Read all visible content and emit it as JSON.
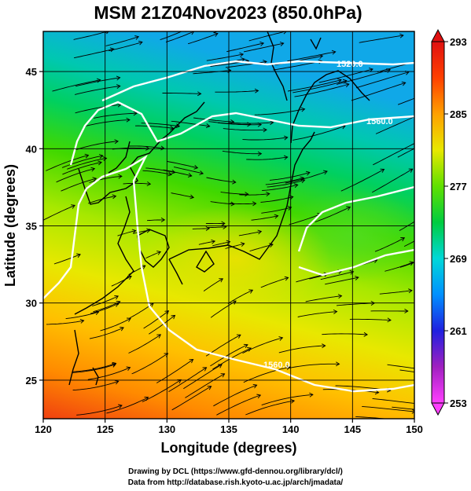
{
  "title": "MSM 21Z04Nov2023 (850.0hPa)",
  "x_axis": {
    "label": "Longitude (degrees)",
    "range": [
      120,
      150
    ],
    "ticks": [
      120,
      125,
      130,
      135,
      140,
      145,
      150
    ]
  },
  "y_axis": {
    "label": "Latitude  (degrees)",
    "range": [
      22.5,
      47.6
    ],
    "ticks": [
      25,
      30,
      35,
      40,
      45
    ]
  },
  "colorbar": {
    "min": 253,
    "max": 293,
    "ticks": [
      253,
      261,
      269,
      277,
      285,
      293
    ],
    "colors": [
      "#ff3fff",
      "#a020c0",
      "#2020e0",
      "#0090ff",
      "#00d8d8",
      "#00cc40",
      "#60e000",
      "#e8e800",
      "#ffa000",
      "#ff4000",
      "#e01010"
    ]
  },
  "contours": [
    {
      "label": "1520.0"
    },
    {
      "label": "1560.0"
    },
    {
      "label": "1560.0"
    }
  ],
  "credits": [
    "Drawing by DCL (https://www.gfd-dennou.org/library/dcl/)",
    "Data from http://database.rish.kyoto-u.ac.jp/arch/jmadata/"
  ]
}
